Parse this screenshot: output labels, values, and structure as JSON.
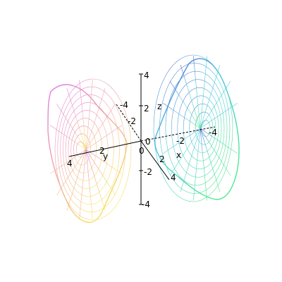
{
  "chart_data": {
    "type": "surface-3d-wireframe",
    "surface": "hyperboloid of two sheets",
    "title": "",
    "axes": {
      "x": {
        "label": "x",
        "range": [
          -4,
          4
        ],
        "ticks": [
          -4,
          -2,
          2,
          4
        ]
      },
      "y": {
        "label": "y",
        "range": [
          -4,
          4
        ],
        "ticks": [
          -4,
          -2,
          2,
          4
        ]
      },
      "z": {
        "label": "z",
        "range": [
          -4,
          4
        ],
        "ticks": [
          -4,
          -2,
          2,
          4
        ]
      }
    },
    "origin_label": "0",
    "grid": false,
    "legend": "none",
    "colors": {
      "left_sheet": [
        "#e67fd8",
        "#f0a8a0",
        "#f2e070"
      ],
      "right_sheet": [
        "#5a6fd6",
        "#58c8d8",
        "#60e8a0"
      ]
    }
  }
}
